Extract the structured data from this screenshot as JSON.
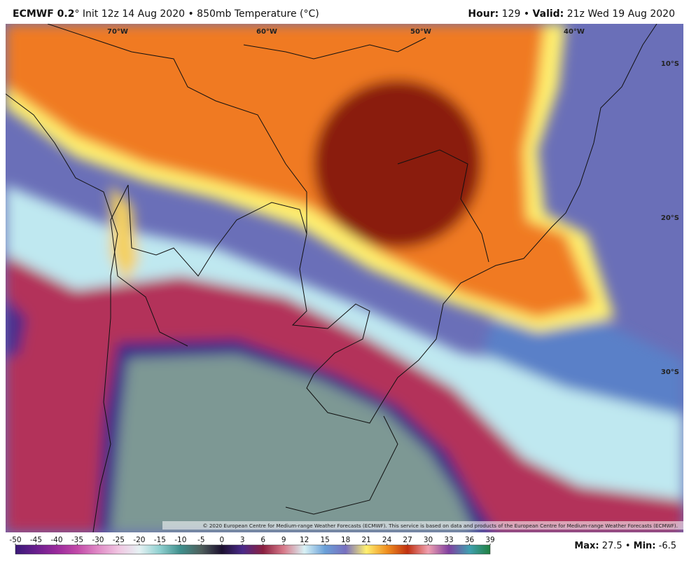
{
  "header": {
    "model": "ECMWF 0.2",
    "info": "° Init 12z 14 Aug 2020 • 850mb Temperature (°C)",
    "hour_label": "Hour:",
    "hour": " 129 • ",
    "valid_label": "Valid:",
    "valid": " 21z Wed 19 Aug 2020"
  },
  "map": {
    "lon_labels": [
      "70°W",
      "60°W",
      "50°W",
      "40°W"
    ],
    "lat_labels": [
      "10°S",
      "20°S",
      "30°S"
    ],
    "credit": "© 2020 European Centre for Medium-range Weather Forecasts (ECMWF). This service is based on data and products of the European Centre for Medium-range Weather Forecasts (ECMWF)."
  },
  "colorbar": {
    "ticks": [
      -50,
      -45,
      -40,
      -35,
      -30,
      -25,
      -20,
      -15,
      -10,
      -5,
      0,
      3,
      6,
      9,
      12,
      15,
      18,
      21,
      24,
      27,
      30,
      33,
      36,
      39
    ],
    "colors": [
      "#3a1a78",
      "#6a1f8e",
      "#9a2a9c",
      "#c24aa8",
      "#e08ac6",
      "#f1c6e2",
      "#e6f2f4",
      "#8fd0d0",
      "#3f8f8c",
      "#4f5f5c",
      "#1c1030",
      "#4a2a8a",
      "#8b2040",
      "#d87a8a",
      "#d9f2f6",
      "#6aa0d8",
      "#7870c0",
      "#fff070",
      "#f09020",
      "#c03010",
      "#f0a0b0",
      "#8040a0",
      "#40a0b0",
      "#208040"
    ]
  },
  "footer": {
    "max_label": "Max:",
    "max": " 27.5 • ",
    "min_label": "Min:",
    "min": " -6.5"
  }
}
